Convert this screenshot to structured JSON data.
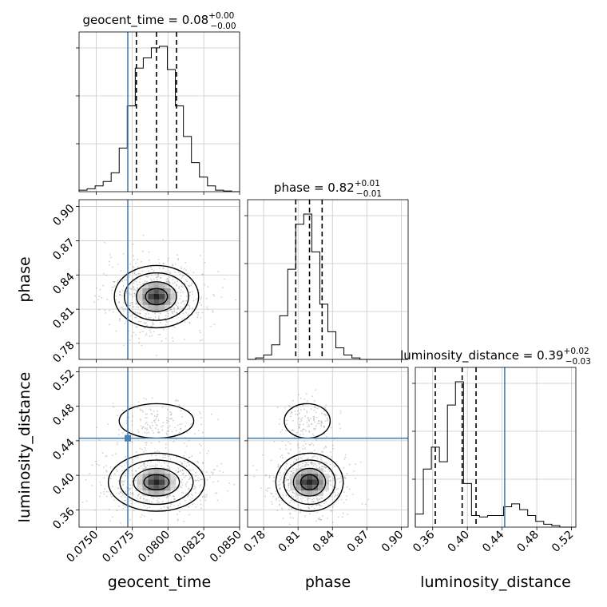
{
  "chart_data": {
    "type": "corner",
    "parameters": [
      "geocent_time",
      "phase",
      "luminosity_distance"
    ],
    "truths": [
      0.0772,
      null,
      0.443
    ],
    "panel_titles": [
      {
        "param": "geocent_time",
        "name": "geocent_time = 0.08",
        "sup": "+0.00",
        "sub": "−0.00"
      },
      {
        "param": "phase",
        "name": "phase = 0.82",
        "sup": "+0.01",
        "sub": "−0.01"
      },
      {
        "param": "luminosity_distance",
        "name": "luminosity_distance = 0.39",
        "sup": "+0.02",
        "sub": "−0.03"
      }
    ],
    "axes": {
      "geocent_time": {
        "label": "geocent_time",
        "range": [
          0.0738,
          0.085
        ],
        "ticks": [
          0.075,
          0.0775,
          0.08,
          0.0825,
          0.085
        ],
        "tick_labels": [
          "0.0750",
          "0.0775",
          "0.0800",
          "0.0825",
          "0.0850"
        ]
      },
      "phase": {
        "label": "phase",
        "range": [
          0.766,
          0.906
        ],
        "ticks": [
          0.78,
          0.81,
          0.84,
          0.87,
          0.9
        ],
        "tick_labels": [
          "0.78",
          "0.81",
          "0.84",
          "0.87",
          "0.90"
        ]
      },
      "luminosity_distance": {
        "label": "luminosity_distance",
        "range": [
          0.34,
          0.525
        ],
        "ticks": [
          0.36,
          0.4,
          0.44,
          0.48,
          0.52
        ],
        "tick_labels": [
          "0.36",
          "0.40",
          "0.44",
          "0.48",
          "0.52"
        ]
      }
    },
    "histograms": {
      "geocent_time": {
        "edges": [
          0.0738,
          0.07436,
          0.07492,
          0.07548,
          0.07604,
          0.0766,
          0.07716,
          0.07772,
          0.07828,
          0.07884,
          0.0794,
          0.07996,
          0.08052,
          0.08108,
          0.08164,
          0.0822,
          0.08276,
          0.08332,
          0.08388,
          0.08444,
          0.085
        ],
        "counts": [
          0.01,
          0.02,
          0.04,
          0.07,
          0.13,
          0.3,
          0.59,
          0.85,
          0.92,
          0.99,
          1.0,
          0.84,
          0.59,
          0.38,
          0.2,
          0.1,
          0.04,
          0.01,
          0.005,
          0
        ],
        "quantiles": [
          0.0778,
          0.0792,
          0.0806
        ]
      },
      "phase": {
        "edges": [
          0.766,
          0.773,
          0.78,
          0.787,
          0.794,
          0.801,
          0.808,
          0.815,
          0.822,
          0.829,
          0.836,
          0.843,
          0.85,
          0.857,
          0.864,
          0.871,
          0.878,
          0.885,
          0.892,
          0.899,
          0.906
        ],
        "counts": [
          0,
          0.01,
          0.03,
          0.1,
          0.3,
          0.62,
          0.93,
          1.0,
          0.74,
          0.38,
          0.19,
          0.08,
          0.03,
          0.01,
          0,
          0,
          0,
          0,
          0,
          0
        ],
        "quantiles": [
          0.808,
          0.82,
          0.831
        ]
      },
      "luminosity_distance": {
        "edges": [
          0.34,
          0.34925,
          0.3585,
          0.36775,
          0.377,
          0.38625,
          0.3955,
          0.40475,
          0.414,
          0.42325,
          0.4325,
          0.44175,
          0.451,
          0.46025,
          0.4695,
          0.47875,
          0.488,
          0.49725,
          0.5065,
          0.51575,
          0.525
        ],
        "counts": [
          0.09,
          0.4,
          0.55,
          0.45,
          0.84,
          1.0,
          0.3,
          0.08,
          0.07,
          0.08,
          0.08,
          0.14,
          0.16,
          0.12,
          0.08,
          0.04,
          0.02,
          0.01,
          0,
          0
        ],
        "quantiles": [
          0.363,
          0.394,
          0.41
        ]
      }
    }
  }
}
